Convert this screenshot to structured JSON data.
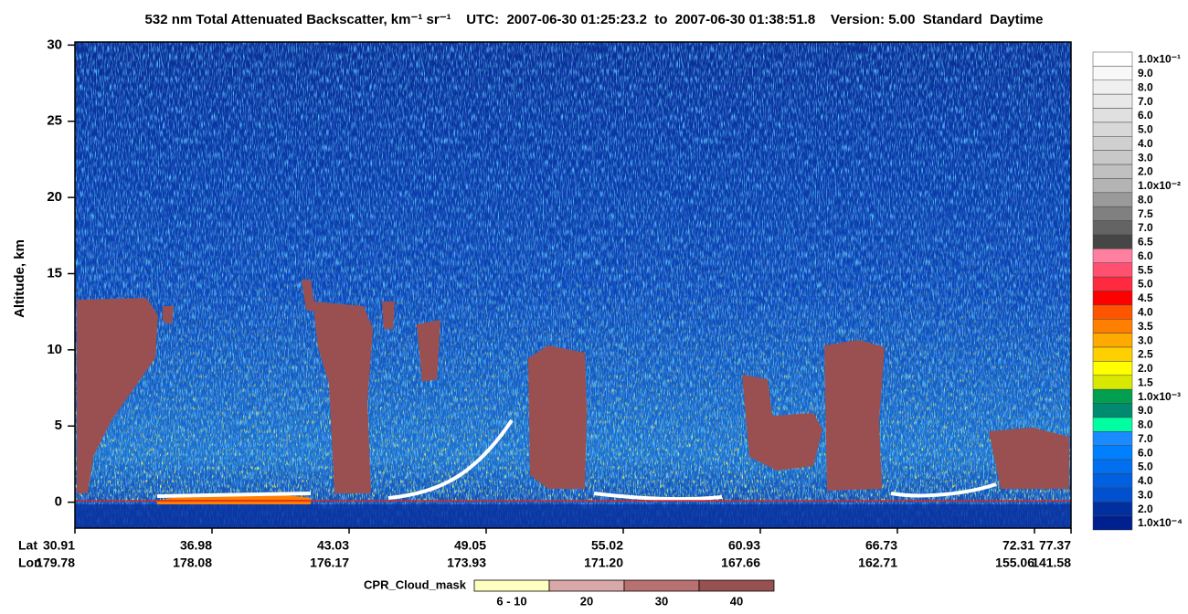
{
  "chart_data": {
    "type": "heatmap",
    "title": "532 nm Total Attenuated Backscatter, km⁻¹ sr⁻¹    UTC:  2007-06-30 01:25:23.2  to  2007-06-30 01:38:51.8    Version: 5.00  Standard  Daytime",
    "y_label": "Altitude, km",
    "ylim": [
      -1.7,
      30.2
    ],
    "yticks": [
      0,
      5,
      10,
      15,
      20,
      25,
      30
    ],
    "x_label_rows": [
      {
        "name": "Lat",
        "labels": [
          "30.91",
          "36.98",
          "43.03",
          "49.05",
          "55.02",
          "60.93",
          "66.73",
          "72.31",
          "77.37"
        ]
      },
      {
        "name": "Lon",
        "labels": [
          "179.78",
          "178.08",
          "176.17",
          "173.93",
          "171.20",
          "167.66",
          "162.71",
          "155.06",
          "141.58"
        ]
      }
    ],
    "colorbar": [
      {
        "label": "1.0x10⁻¹",
        "color": "#ffffff"
      },
      {
        "label": "9.0",
        "color": "#f8f8f8"
      },
      {
        "label": "8.0",
        "color": "#f0f0f0"
      },
      {
        "label": "7.0",
        "color": "#e8e8e8"
      },
      {
        "label": "6.0",
        "color": "#e0e0e0"
      },
      {
        "label": "5.0",
        "color": "#d8d8d8"
      },
      {
        "label": "4.0",
        "color": "#d0d0d0"
      },
      {
        "label": "3.0",
        "color": "#c8c8c8"
      },
      {
        "label": "2.0",
        "color": "#c0c0c0"
      },
      {
        "label": "1.0x10⁻²",
        "color": "#b4b4b4"
      },
      {
        "label": "8.0",
        "color": "#9a9a9a"
      },
      {
        "label": "7.5",
        "color": "#808080"
      },
      {
        "label": "7.0",
        "color": "#646464"
      },
      {
        "label": "6.5",
        "color": "#464646"
      },
      {
        "label": "6.0",
        "color": "#ff7fa0"
      },
      {
        "label": "5.5",
        "color": "#ff5070"
      },
      {
        "label": "5.0",
        "color": "#ff2a40"
      },
      {
        "label": "4.5",
        "color": "#ff0000"
      },
      {
        "label": "4.0",
        "color": "#ff5500"
      },
      {
        "label": "3.5",
        "color": "#ff7f00"
      },
      {
        "label": "3.0",
        "color": "#ffaa00"
      },
      {
        "label": "2.5",
        "color": "#ffd000"
      },
      {
        "label": "2.0",
        "color": "#ffff00"
      },
      {
        "label": "1.5",
        "color": "#d8e800"
      },
      {
        "label": "1.0x10⁻³",
        "color": "#00a050"
      },
      {
        "label": "9.0",
        "color": "#008a70"
      },
      {
        "label": "8.0",
        "color": "#00ffa0"
      },
      {
        "label": "7.0",
        "color": "#1a8cff"
      },
      {
        "label": "6.0",
        "color": "#0080ff"
      },
      {
        "label": "5.0",
        "color": "#0070f0"
      },
      {
        "label": "4.0",
        "color": "#0060e0"
      },
      {
        "label": "3.0",
        "color": "#0050d0"
      },
      {
        "label": "2.0",
        "color": "#0030a0"
      },
      {
        "label": "1.0x10⁻⁴",
        "color": "#002090"
      }
    ],
    "cloud_mask_legend": {
      "title": "CPR_Cloud_mask",
      "items": [
        {
          "label": "6 - 10",
          "color": "#ffffc0"
        },
        {
          "label": "20",
          "color": "#d9a8a8"
        },
        {
          "label": "30",
          "color": "#b87070"
        },
        {
          "label": "40",
          "color": "#985050"
        }
      ]
    }
  }
}
